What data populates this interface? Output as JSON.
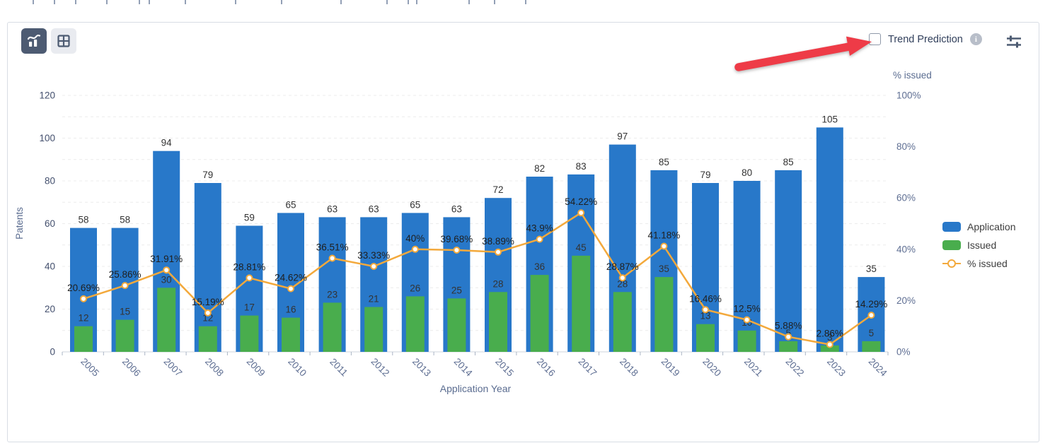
{
  "toolbar": {
    "chart_view_button": "chart view",
    "table_view_button": "table view",
    "trend_prediction_label": "Trend Prediction"
  },
  "colors": {
    "application_blue": "#2878c9",
    "issued_green": "#49ad4d",
    "line_orange": "#f3a93c",
    "arrow_red": "#ee3b47",
    "toolbar_slate": "#4d5b72"
  },
  "chart_data": {
    "type": "bar",
    "title": "",
    "xlabel": "Application Year",
    "ylabel_left": "Patents",
    "ylabel_right": "% issued",
    "ylim_left": [
      0,
      120
    ],
    "ylim_right": [
      0,
      100
    ],
    "left_ticks": [
      0,
      20,
      40,
      60,
      80,
      100,
      120
    ],
    "right_ticks": [
      "0%",
      "20%",
      "40%",
      "60%",
      "80%",
      "100%"
    ],
    "grid": "horizontal-dashed",
    "legend_position": "right",
    "categories": [
      "2005",
      "2006",
      "2007",
      "2008",
      "2009",
      "2010",
      "2011",
      "2012",
      "2013",
      "2014",
      "2015",
      "2016",
      "2017",
      "2018",
      "2019",
      "2020",
      "2021",
      "2022",
      "2023",
      "2024"
    ],
    "series": [
      {
        "name": "Application",
        "type": "bar",
        "color": "#2878c9",
        "values": [
          58,
          58,
          94,
          79,
          59,
          65,
          63,
          63,
          65,
          63,
          72,
          82,
          83,
          97,
          85,
          79,
          80,
          85,
          105,
          35
        ]
      },
      {
        "name": "Issued",
        "type": "bar",
        "color": "#49ad4d",
        "values": [
          12,
          15,
          30,
          12,
          17,
          16,
          23,
          21,
          26,
          25,
          28,
          36,
          45,
          28,
          35,
          13,
          10,
          5,
          3,
          5
        ]
      },
      {
        "name": "% issued",
        "type": "line",
        "color": "#f3a93c",
        "values": [
          20.69,
          25.86,
          31.91,
          15.19,
          28.81,
          24.62,
          36.51,
          33.33,
          40,
          39.68,
          38.89,
          43.9,
          54.22,
          28.87,
          41.18,
          16.46,
          12.5,
          5.88,
          2.86,
          14.29
        ],
        "labels": [
          "20.69%",
          "25.86%",
          "31.91%",
          "15.19%",
          "28.81%",
          "24.62%",
          "36.51%",
          "33.33%",
          "40%",
          "39.68%",
          "38.89%",
          "43.9%",
          "54.22%",
          "28.87%",
          "41.18%",
          "16.46%",
          "12.5%",
          "5.88%",
          "2.86%",
          "14.29%"
        ]
      }
    ]
  }
}
